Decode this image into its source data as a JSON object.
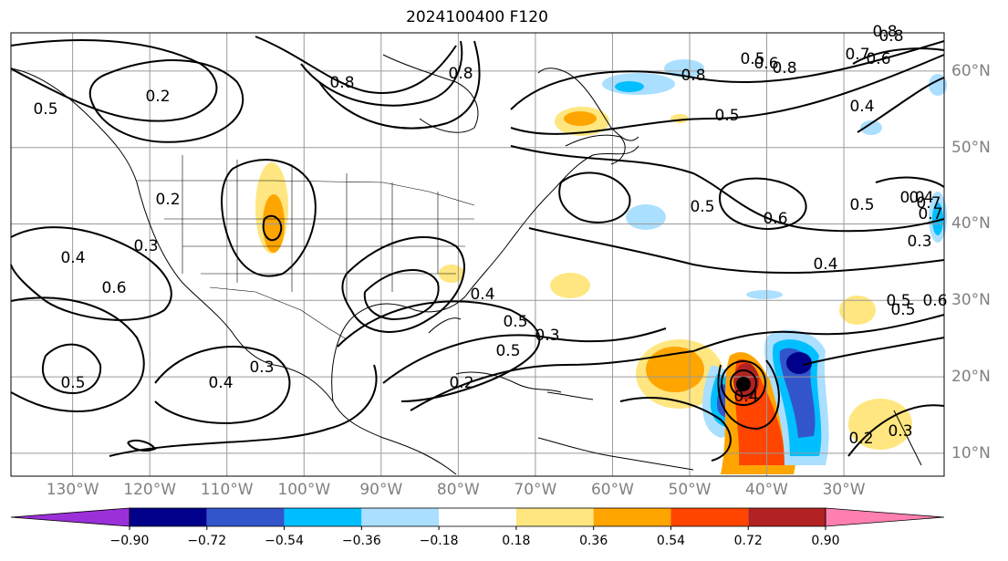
{
  "title": "2024100400 F120",
  "map": {
    "projection": "equirectangular",
    "lon_range": [
      -138,
      -17
    ],
    "lat_range": [
      7,
      65
    ],
    "grid": true,
    "lon_ticks": [
      "130°W",
      "120°W",
      "110°W",
      "100°W",
      "90°W",
      "80°W",
      "70°W",
      "60°W",
      "50°W",
      "40°W",
      "30°W"
    ],
    "lat_ticks": [
      "60°N",
      "50°N",
      "40°N",
      "30°N",
      "20°N",
      "10°N"
    ],
    "contour_labels": [
      "0.2",
      "0.2",
      "0.8",
      "0.8",
      "0.8",
      "0.5",
      "0.4",
      "0.6",
      "0.5",
      "0.4",
      "0.3",
      "0.8",
      "0.7",
      "0.5",
      "0.8",
      "0.6",
      "0.7",
      "0.6",
      "0.5",
      "0.4",
      "0.5",
      "0.6",
      "0.4",
      "0.5",
      "0.4",
      "0.5",
      "0.3",
      "0.2",
      "0.4",
      "0.5",
      "0.3",
      "0.6",
      "0.3",
      "0.2",
      "0.3",
      "0.5",
      "0.0",
      "0.7",
      "0.5",
      "0.4",
      "0.8"
    ],
    "storm_marker": "black-dot"
  },
  "colorbar": {
    "ticks": [
      "−0.90",
      "−0.72",
      "−0.54",
      "−0.36",
      "−0.18",
      "0.18",
      "0.36",
      "0.54",
      "0.72",
      "0.90"
    ],
    "colors": [
      "#9b30d9",
      "#00008b",
      "#3355cc",
      "#00bfff",
      "#aadfff",
      "#ffffff",
      "#ffe680",
      "#ffa500",
      "#ff4500",
      "#b22222",
      "#ff80b0"
    ],
    "extend": "both"
  }
}
